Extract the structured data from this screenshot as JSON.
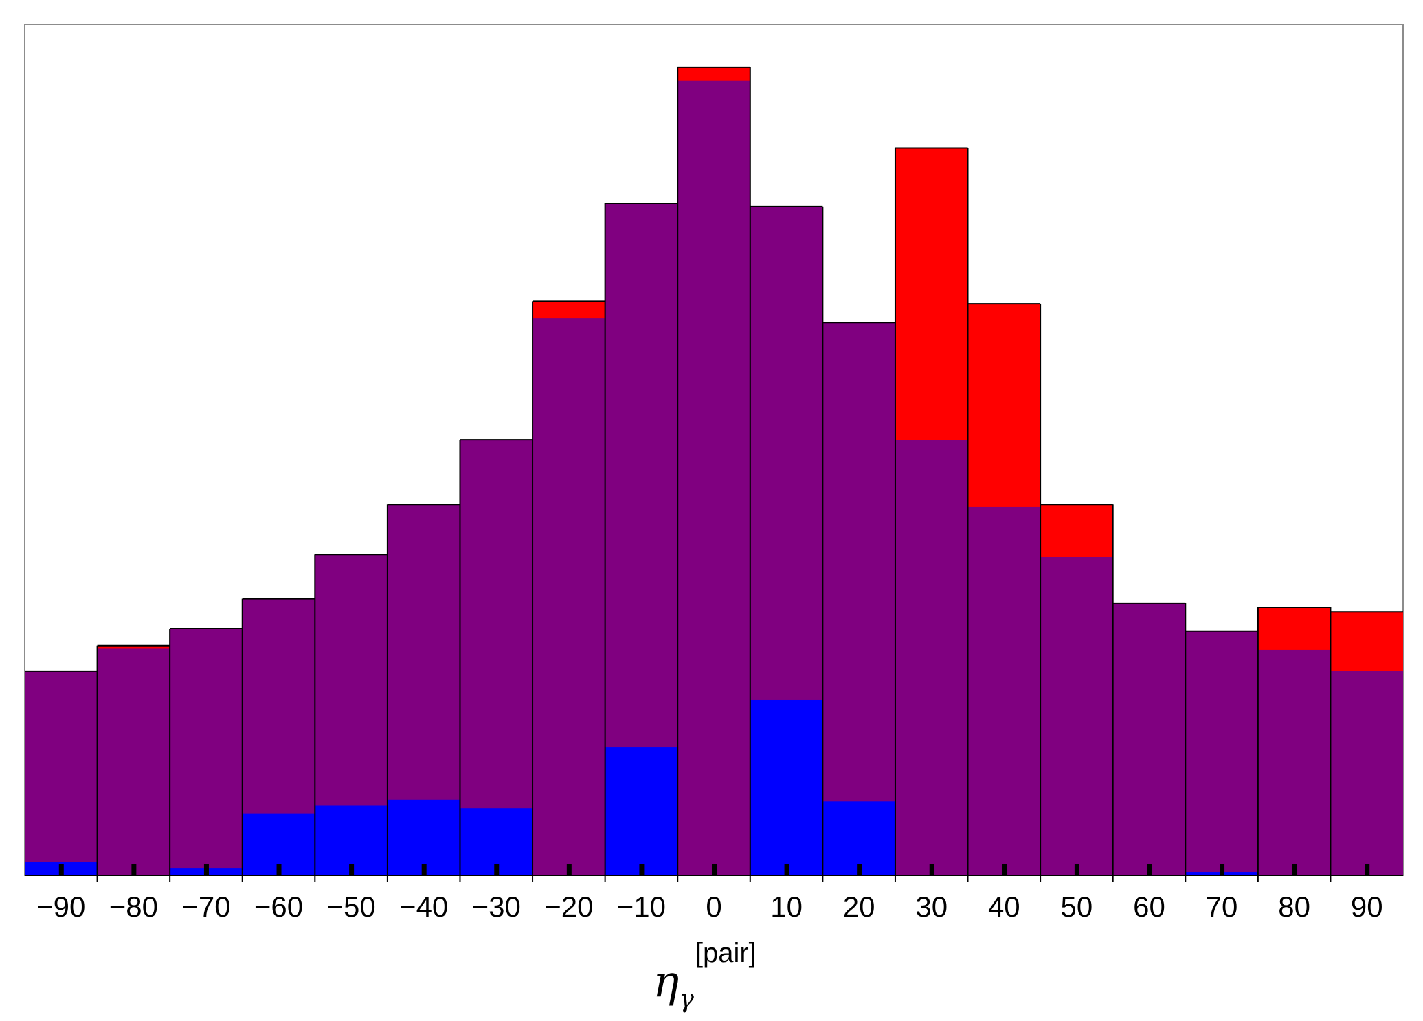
{
  "chart_data": {
    "type": "bar",
    "title": "",
    "xlabel": {
      "main": "η",
      "subscript": "γ",
      "superscript": "[pair]"
    },
    "ylabel": "",
    "x_ticks": [
      "-90",
      "-80",
      "-70",
      "-60",
      "-50",
      "-40",
      "-30",
      "-20",
      "-10",
      "0",
      "10",
      "20",
      "30",
      "40",
      "50",
      "60",
      "70",
      "80",
      "90"
    ],
    "bin_width": 10,
    "ylim": [
      0,
      1
    ],
    "y_axis_labels_shown": false,
    "grid": false,
    "legend": "none",
    "series": [
      {
        "color": "#ff0000",
        "values": [
          0.24,
          0.27,
          0.29,
          0.325,
          0.377,
          0.436,
          0.512,
          0.675,
          0.79,
          0.95,
          0.786,
          0.65,
          0.855,
          0.672,
          0.436,
          0.32,
          0.287,
          0.315,
          0.31
        ]
      },
      {
        "color": "#800080",
        "values": [
          0.24,
          0.267,
          0.29,
          0.325,
          0.377,
          0.436,
          0.512,
          0.655,
          0.79,
          0.934,
          0.786,
          0.65,
          0.512,
          0.433,
          0.374,
          0.32,
          0.287,
          0.265,
          0.24
        ]
      },
      {
        "color": "#0000ff",
        "values": [
          0.016,
          0,
          0.008,
          0.073,
          0.082,
          0.089,
          0.079,
          0,
          0.151,
          0,
          0.206,
          0.087,
          0,
          0,
          0,
          0,
          0.004,
          0,
          0
        ]
      }
    ]
  }
}
